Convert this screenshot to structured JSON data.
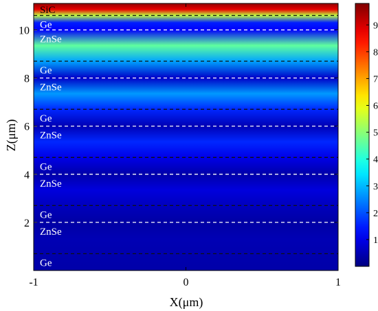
{
  "chart_data": {
    "type": "heatmap",
    "title": "",
    "xlabel": "X(μm)",
    "ylabel": "Z(μm)",
    "xlim": [
      -1,
      1
    ],
    "ylim": [
      0,
      11.1
    ],
    "x_ticks": [
      "-1",
      "0",
      "1"
    ],
    "y_ticks": [
      "2",
      "4",
      "6",
      "8",
      "10"
    ],
    "x_tick_values": [
      -1,
      0,
      1
    ],
    "y_tick_values": [
      2,
      4,
      6,
      8,
      10
    ],
    "colormap": "jet",
    "color_range": [
      0,
      9.8
    ],
    "colorbar_ticks": [
      "1",
      "2",
      "3",
      "4",
      "5",
      "6",
      "7",
      "8",
      "9"
    ],
    "colorbar_tick_values": [
      1,
      2,
      3,
      4,
      5,
      6,
      7,
      8,
      9
    ],
    "layers": [
      {
        "material": "Ge",
        "z_bottom": 0.0,
        "z_top": 0.7
      },
      {
        "material": "ZnSe",
        "z_bottom": 0.7,
        "z_top": 2.0
      },
      {
        "material": "Ge",
        "z_bottom": 2.0,
        "z_top": 2.7
      },
      {
        "material": "ZnSe",
        "z_bottom": 2.7,
        "z_top": 4.0
      },
      {
        "material": "Ge",
        "z_bottom": 4.0,
        "z_top": 4.7
      },
      {
        "material": "ZnSe",
        "z_bottom": 4.7,
        "z_top": 6.0
      },
      {
        "material": "Ge",
        "z_bottom": 6.0,
        "z_top": 6.7
      },
      {
        "material": "ZnSe",
        "z_bottom": 6.7,
        "z_top": 8.0
      },
      {
        "material": "Ge",
        "z_bottom": 8.0,
        "z_top": 8.7
      },
      {
        "material": "ZnSe",
        "z_bottom": 8.7,
        "z_top": 10.0
      },
      {
        "material": "Ge",
        "z_bottom": 10.0,
        "z_top": 10.6
      },
      {
        "material": "SiC",
        "z_bottom": 10.6,
        "z_top": 11.1
      }
    ],
    "interfaces": [
      0.7,
      2.0,
      2.7,
      4.0,
      4.7,
      6.0,
      6.7,
      8.0,
      8.7,
      10.0,
      10.6
    ],
    "field_profile": [
      {
        "z": 0.0,
        "v": 0.4
      },
      {
        "z": 0.7,
        "v": 0.45
      },
      {
        "z": 1.3,
        "v": 0.5
      },
      {
        "z": 2.0,
        "v": 0.35
      },
      {
        "z": 2.7,
        "v": 0.6
      },
      {
        "z": 3.35,
        "v": 0.9
      },
      {
        "z": 4.0,
        "v": 0.4
      },
      {
        "z": 4.7,
        "v": 1.0
      },
      {
        "z": 5.35,
        "v": 1.6
      },
      {
        "z": 6.0,
        "v": 0.5
      },
      {
        "z": 6.7,
        "v": 1.6
      },
      {
        "z": 7.35,
        "v": 2.7
      },
      {
        "z": 8.0,
        "v": 0.7
      },
      {
        "z": 8.7,
        "v": 2.8
      },
      {
        "z": 9.35,
        "v": 4.6
      },
      {
        "z": 10.0,
        "v": 1.2
      },
      {
        "z": 10.3,
        "v": 1.5
      },
      {
        "z": 10.6,
        "v": 5.5
      },
      {
        "z": 10.85,
        "v": 8.8
      },
      {
        "z": 11.1,
        "v": 9.6
      }
    ]
  }
}
